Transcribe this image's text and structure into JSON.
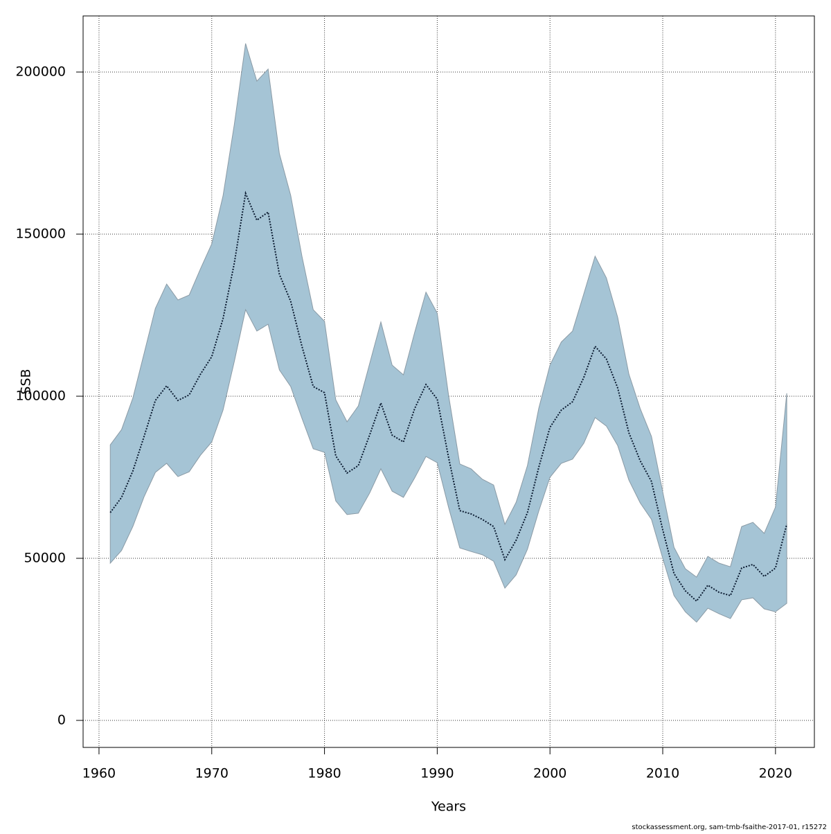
{
  "chart_data": {
    "type": "band-line",
    "x_label": "Years",
    "y_label": "SSB",
    "caption": "stockassessment.org, sam-tmb-fsaithe-2017-01, r15272",
    "x": [
      1961,
      1962,
      1963,
      1964,
      1965,
      1966,
      1967,
      1968,
      1969,
      1970,
      1971,
      1972,
      1973,
      1974,
      1975,
      1976,
      1977,
      1978,
      1979,
      1980,
      1981,
      1982,
      1983,
      1984,
      1985,
      1986,
      1987,
      1988,
      1989,
      1990,
      1991,
      1992,
      1993,
      1994,
      1995,
      1996,
      1997,
      1998,
      1999,
      2000,
      2001,
      2002,
      2003,
      2004,
      2005,
      2006,
      2007,
      2008,
      2009,
      2010,
      2011,
      2012,
      2013,
      2014,
      2015,
      2016,
      2017,
      2018,
      2019,
      2020,
      2021
    ],
    "values": [
      64100,
      68800,
      76900,
      87600,
      98700,
      103200,
      98700,
      100400,
      106800,
      112200,
      123900,
      141000,
      162600,
      154300,
      156800,
      137600,
      129300,
      115400,
      103000,
      101100,
      81600,
      76300,
      78600,
      88000,
      97900,
      88000,
      85900,
      96200,
      103600,
      99100,
      81200,
      64700,
      63700,
      62000,
      59800,
      49600,
      55600,
      64100,
      78000,
      90400,
      95700,
      98300,
      105800,
      115400,
      111500,
      102600,
      88700,
      80100,
      73700,
      58800,
      45300,
      40000,
      36800,
      41700,
      39500,
      38500,
      47000,
      48100,
      44400,
      47000,
      60500
    ],
    "upper": [
      85000,
      89700,
      99400,
      113200,
      127100,
      134600,
      129700,
      131200,
      139300,
      147000,
      161800,
      183800,
      208800,
      197200,
      200900,
      174800,
      162000,
      143200,
      126700,
      123100,
      98900,
      92100,
      97000,
      110000,
      122900,
      109600,
      106600,
      119700,
      132100,
      125600,
      100400,
      79100,
      77600,
      74400,
      72600,
      60500,
      67300,
      78600,
      96200,
      109600,
      116700,
      120100,
      131600,
      143200,
      136500,
      124400,
      106800,
      96200,
      87600,
      70500,
      53400,
      46800,
      44200,
      50600,
      48500,
      47400,
      59800,
      61100,
      57700,
      65800,
      100900
    ],
    "lower": [
      48500,
      52400,
      59800,
      69000,
      76500,
      79300,
      75200,
      76700,
      81800,
      85900,
      95700,
      110700,
      126700,
      120100,
      122200,
      108100,
      103000,
      93200,
      83800,
      82700,
      67700,
      63500,
      63900,
      70100,
      77600,
      70700,
      68800,
      74800,
      81400,
      79500,
      65800,
      53200,
      52100,
      51100,
      49100,
      40800,
      44900,
      52800,
      64500,
      75000,
      79300,
      80600,
      85500,
      93400,
      90800,
      84800,
      74100,
      67100,
      62000,
      50000,
      38500,
      33500,
      30300,
      34600,
      32900,
      31400,
      37200,
      37800,
      34400,
      33500,
      36100
    ],
    "line_color": "#0a1a30",
    "band_color": "#a5c4d5",
    "band_edge": "#8a9aa5",
    "xlim": [
      1958.59,
      2023.45
    ],
    "ylim": [
      -8333,
      217308
    ],
    "xticks": [
      1960,
      1970,
      1980,
      1990,
      2000,
      2010,
      2020
    ],
    "yticks": [
      0,
      50000,
      100000,
      150000,
      200000
    ],
    "grid": true
  }
}
